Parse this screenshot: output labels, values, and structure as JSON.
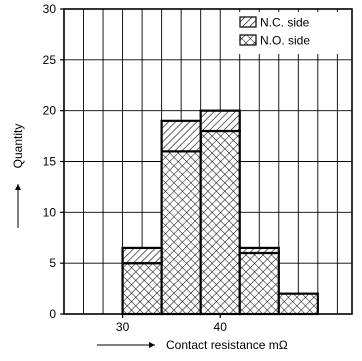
{
  "chart_data": {
    "type": "bar",
    "title": "",
    "xlabel": "Contact resistance mΩ",
    "ylabel": "Quantity",
    "xlim": [
      24,
      53.5
    ],
    "ylim": [
      0,
      30
    ],
    "x_ticks": [
      30,
      40
    ],
    "y_ticks": [
      0,
      5,
      10,
      15,
      20,
      25,
      30
    ],
    "bin_width": 4,
    "bins": [
      30,
      34,
      38,
      42,
      46
    ],
    "grid": true,
    "legend_position": "top-right",
    "stacked": true,
    "series": [
      {
        "name": "N.O. side",
        "pattern": "cross-hatch",
        "values": [
          5,
          16,
          18,
          6,
          2
        ]
      },
      {
        "name": "N.C. side",
        "pattern": "diagonal-hatch",
        "values": [
          1.5,
          3,
          2,
          0.5,
          0
        ]
      }
    ]
  }
}
